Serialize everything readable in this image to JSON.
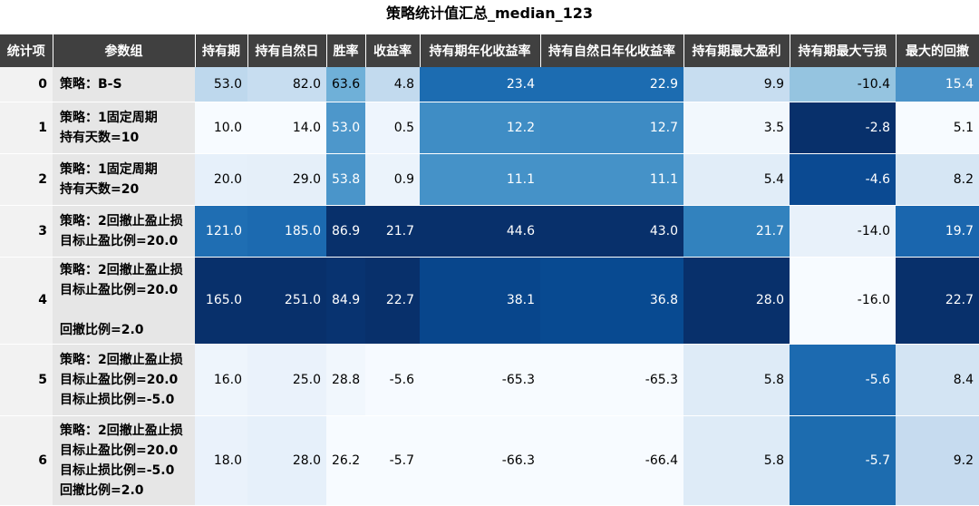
{
  "title": "策略统计值汇总_median_123",
  "headers": [
    "统计项",
    "参数组",
    "持有期",
    "持有自然日",
    "胜率",
    "收益率",
    "持有期年化收益率",
    "持有自然日年化收益率",
    "持有期最大盈利",
    "持有期最大亏损",
    "最大的回撤"
  ],
  "rows": [
    {
      "idx": "0",
      "group": [
        "策略：B-S"
      ],
      "values": [
        "53.0",
        "82.0",
        "63.6",
        "4.8",
        "23.4",
        "22.9",
        "9.9",
        "-10.4",
        "15.4"
      ],
      "colors": [
        "#bed8ed",
        "#c7ddf0",
        "#6fb0d8",
        "#c2daee",
        "#1c6cb1",
        "#1c6cb1",
        "#c7ddf0",
        "#95c4e0",
        "#4a93c9"
      ]
    },
    {
      "idx": "1",
      "group": [
        "策略：1固定周期",
        "持有天数=10"
      ],
      "values": [
        "10.0",
        "14.0",
        "53.0",
        "0.5",
        "12.2",
        "12.7",
        "3.5",
        "-2.8",
        "5.1"
      ],
      "colors": [
        "#f7fbff",
        "#f7fbff",
        "#4d97cb",
        "#eef5fd",
        "#3f8dc5",
        "#3d8bc4",
        "#f2f8fd",
        "#08306b",
        "#f7fbff"
      ]
    },
    {
      "idx": "2",
      "group": [
        "策略：1固定周期",
        "持有天数=20"
      ],
      "values": [
        "20.0",
        "29.0",
        "53.8",
        "0.9",
        "11.1",
        "11.1",
        "5.4",
        "-4.6",
        "8.2"
      ],
      "colors": [
        "#e6f0fa",
        "#e5eff9",
        "#4a95ca",
        "#ebf3fb",
        "#4592c8",
        "#4592c8",
        "#e1edf8",
        "#0b4a92",
        "#d6e6f4"
      ]
    },
    {
      "idx": "3",
      "group": [
        "策略：2回撤止盈止损",
        "目标止盈比例=20.0"
      ],
      "values": [
        "121.0",
        "185.0",
        "86.9",
        "21.7",
        "44.6",
        "43.0",
        "21.7",
        "-14.0",
        "19.7"
      ],
      "colors": [
        "#1f6eb3",
        "#1c6ab0",
        "#08306b",
        "#08306b",
        "#08306b",
        "#08306b",
        "#3282be",
        "#e8f1fa",
        "#1a66ae"
      ]
    },
    {
      "idx": "4",
      "group": [
        "策略：2回撤止盈止损",
        "目标止盈比例=20.0",
        "",
        "回撤比例=2.0"
      ],
      "values": [
        "165.0",
        "251.0",
        "84.9",
        "22.7",
        "38.1",
        "36.8",
        "28.0",
        "-16.0",
        "22.7"
      ],
      "colors": [
        "#08306b",
        "#08306b",
        "#083370",
        "#08306b",
        "#08468c",
        "#084a91",
        "#08306b",
        "#f7fbff",
        "#08306b"
      ]
    },
    {
      "idx": "5",
      "group": [
        "策略：2回撤止盈止损",
        "目标止盈比例=20.0",
        "目标止损比例=-5.0"
      ],
      "values": [
        "16.0",
        "25.0",
        "28.8",
        "-5.6",
        "-65.3",
        "-65.3",
        "5.8",
        "-5.6",
        "8.4"
      ],
      "colors": [
        "#eef5fc",
        "#eaf2fb",
        "#f1f7fd",
        "#f6faff",
        "#f7fbff",
        "#f7fbff",
        "#deebf7",
        "#1c6ab0",
        "#d3e4f3"
      ]
    },
    {
      "idx": "6",
      "group": [
        "策略：2回撤止盈止损",
        "目标止盈比例=20.0",
        "目标止损比例=-5.0",
        "回撤比例=2.0"
      ],
      "values": [
        "18.0",
        "28.0",
        "26.2",
        "-5.7",
        "-66.3",
        "-66.4",
        "5.8",
        "-5.7",
        "9.2"
      ],
      "colors": [
        "#eaf2fb",
        "#e6f0fa",
        "#f7fbff",
        "#f7fbff",
        "#f7fbff",
        "#f7fbff",
        "#deebf7",
        "#1d6caf",
        "#c6dbef"
      ]
    }
  ]
}
